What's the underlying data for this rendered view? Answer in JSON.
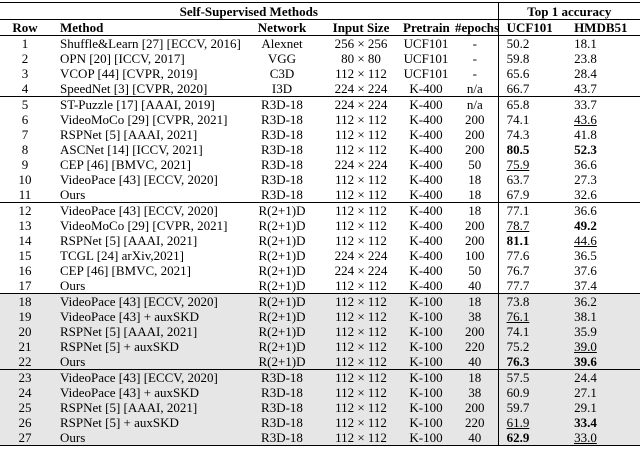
{
  "header": {
    "group_left": "Self-Supervised Methods",
    "group_right": "Top 1 accuracy",
    "columns": [
      "Row",
      "Method",
      "Network",
      "Input Size",
      "Pretrain",
      "#epochs",
      "UCF101",
      "HMDB51"
    ]
  },
  "groups": [
    {
      "shaded": false,
      "rows": [
        [
          "1",
          "Shuffle&Learn [27] [ECCV, 2016]",
          "Alexnet",
          "256 × 256",
          "UCF101",
          "-",
          "50.2",
          "18.1"
        ],
        [
          "2",
          "OPN [20] [ICCV, 2017]",
          "VGG",
          "80 × 80",
          "UCF101",
          "-",
          "59.8",
          "23.8"
        ],
        [
          "3",
          "VCOP [44] [CVPR, 2019]",
          "C3D",
          "112 × 112",
          "UCF101",
          "-",
          "65.6",
          "28.4"
        ],
        [
          "4",
          "SpeedNet [3] [CVPR, 2020]",
          "I3D",
          "224 × 224",
          "K-400",
          "n/a",
          "66.7",
          "43.7"
        ]
      ]
    },
    {
      "shaded": false,
      "rows": [
        [
          "5",
          "ST-Puzzle [17] [AAAI, 2019]",
          "R3D-18",
          "224 × 224",
          "K-400",
          "n/a",
          "65.8",
          "33.7"
        ],
        [
          "6",
          "VideoMoCo [29] [CVPR, 2021]",
          "R3D-18",
          "112 × 112",
          "K-400",
          "200",
          "74.1",
          "43.6"
        ],
        [
          "7",
          "RSPNet [5] [AAAI, 2021]",
          "R3D-18",
          "112 × 112",
          "K-400",
          "200",
          "74.3",
          "41.8"
        ],
        [
          "8",
          "ASCNet [14] [ICCV, 2021]",
          "R3D-18",
          "112 × 112",
          "K-400",
          "200",
          "80.5",
          "52.3"
        ],
        [
          "9",
          "CEP [46] [BMVC, 2021]",
          "R3D-18",
          "224 × 224",
          "K-400",
          "50",
          "75.9",
          "36.6"
        ],
        [
          "10",
          "VideoPace [43] [ECCV, 2020]",
          "R3D-18",
          "112 × 112",
          "K-400",
          "18",
          "63.7",
          "27.3"
        ],
        [
          "11",
          "Ours",
          "R3D-18",
          "112 × 112",
          "K-400",
          "18",
          "67.9",
          "32.6"
        ]
      ]
    },
    {
      "shaded": false,
      "rows": [
        [
          "12",
          "VideoPace [43] [ECCV, 2020]",
          "R(2+1)D",
          "112 × 112",
          "K-400",
          "18",
          "77.1",
          "36.6"
        ],
        [
          "13",
          "VideoMoCo [29] [CVPR, 2021]",
          "R(2+1)D",
          "112 × 112",
          "K-400",
          "200",
          "78.7",
          "49.2"
        ],
        [
          "14",
          "RSPNet [5] [AAAI, 2021]",
          "R(2+1)D",
          "112 × 112",
          "K-400",
          "200",
          "81.1",
          "44.6"
        ],
        [
          "15",
          "TCGL [24] arXiv,2021]",
          "R(2+1)D",
          "224 × 224",
          "K-400",
          "100",
          "77.6",
          "36.5"
        ],
        [
          "16",
          "CEP [46] [BMVC, 2021]",
          "R(2+1)D",
          "224 × 224",
          "K-400",
          "50",
          "76.7",
          "37.6"
        ],
        [
          "17",
          "Ours",
          "R(2+1)D",
          "112 × 112",
          "K-400",
          "40",
          "77.7",
          "37.4"
        ]
      ]
    },
    {
      "shaded": true,
      "rows": [
        [
          "18",
          "VideoPace [43] [ECCV, 2020]",
          "R(2+1)D",
          "112 × 112",
          "K-100",
          "18",
          "73.8",
          "36.2"
        ],
        [
          "19",
          "VideoPace [43] + auxSKD",
          "R(2+1)D",
          "112 × 112",
          "K-100",
          "38",
          "76.1",
          "38.1"
        ],
        [
          "20",
          "RSPNet [5] [AAAI, 2021]",
          "R(2+1)D",
          "112 × 112",
          "K-100",
          "200",
          "74.1",
          "35.9"
        ],
        [
          "21",
          "RSPNet [5] + auxSKD",
          "R(2+1)D",
          "112 × 112",
          "K-100",
          "220",
          "75.2",
          "39.0"
        ],
        [
          "22",
          "Ours",
          "R(2+1)D",
          "112 × 112",
          "K-100",
          "40",
          "76.3",
          "39.6"
        ]
      ]
    },
    {
      "shaded": true,
      "rows": [
        [
          "23",
          "VideoPace [43] [ECCV, 2020]",
          "R3D-18",
          "112 × 112",
          "K-100",
          "18",
          "57.5",
          "24.4"
        ],
        [
          "24",
          "VideoPace [43] + auxSKD",
          "R3D-18",
          "112 × 112",
          "K-100",
          "38",
          "60.9",
          "27.1"
        ],
        [
          "25",
          "RSPNet [5] [AAAI, 2021]",
          "R3D-18",
          "112 × 112",
          "K-100",
          "200",
          "59.7",
          "29.1"
        ],
        [
          "26",
          "RSPNet [5] + auxSKD",
          "R3D-18",
          "112 × 112",
          "K-100",
          "220",
          "61.9",
          "33.4"
        ],
        [
          "27",
          "Ours",
          "R3D-18",
          "112 × 112",
          "K-100",
          "40",
          "62.9",
          "33.0"
        ]
      ]
    }
  ],
  "bold": [
    [
      1,
      3,
      6
    ],
    [
      1,
      3,
      7
    ],
    [
      2,
      1,
      7
    ],
    [
      2,
      2,
      6
    ],
    [
      3,
      4,
      6
    ],
    [
      3,
      4,
      7
    ],
    [
      4,
      3,
      7
    ],
    [
      4,
      4,
      6
    ]
  ],
  "underline": [
    [
      1,
      1,
      7
    ],
    [
      1,
      4,
      6
    ],
    [
      2,
      1,
      6
    ],
    [
      2,
      2,
      7
    ],
    [
      3,
      1,
      6
    ],
    [
      3,
      3,
      7
    ],
    [
      4,
      3,
      6
    ],
    [
      4,
      4,
      7
    ]
  ]
}
